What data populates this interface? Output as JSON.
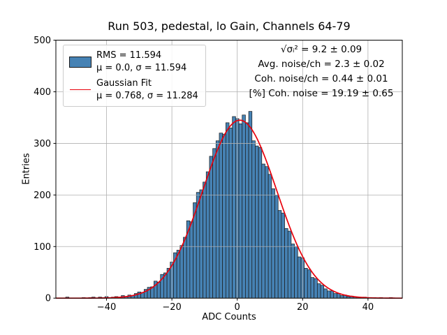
{
  "chart_data": {
    "type": "bar",
    "subtype": "histogram",
    "title": "Run 503, pedestal, lo Gain, Channels 64-79",
    "xlabel": "ADC Counts",
    "ylabel": "Entries",
    "xlim": [
      -55.5,
      50.5
    ],
    "ylim": [
      0,
      500
    ],
    "xticks": [
      -40,
      -20,
      0,
      20,
      40
    ],
    "yticks": [
      0,
      100,
      200,
      300,
      400,
      500
    ],
    "grid": true,
    "bin_start": -52.5,
    "bin_width": 1,
    "counts": [
      2,
      0,
      0,
      0,
      0,
      1,
      0,
      1,
      2,
      0,
      2,
      1,
      3,
      1,
      2,
      3,
      1,
      5,
      3,
      6,
      5,
      9,
      12,
      11,
      17,
      21,
      22,
      33,
      31,
      46,
      49,
      58,
      70,
      88,
      93,
      102,
      118,
      150,
      148,
      185,
      205,
      210,
      225,
      245,
      275,
      290,
      305,
      320,
      318,
      340,
      330,
      352,
      348,
      338,
      355,
      340,
      362,
      305,
      295,
      292,
      260,
      255,
      240,
      212,
      200,
      170,
      165,
      135,
      130,
      105,
      100,
      80,
      78,
      58,
      55,
      40,
      38,
      28,
      25,
      18,
      14,
      14,
      9,
      9,
      5,
      6,
      3,
      4,
      2,
      2,
      1,
      2,
      1,
      0,
      1,
      0,
      1,
      0,
      0,
      1
    ],
    "fit": {
      "label": "Gaussian Fit",
      "mu": 0.768,
      "sigma": 11.284,
      "amplitude": 345
    },
    "legend": {
      "entries": [
        {
          "type": "patch",
          "lines": [
            "RMS = 11.594",
            "μ = 0.0, σ = 11.594"
          ]
        },
        {
          "type": "line",
          "lines": [
            "Gaussian Fit",
            "μ = 0.768, σ = 11.284"
          ]
        }
      ]
    },
    "annotations": [
      "√σᵢ² = 9.2 ± 0.09",
      "Avg. noise/ch = 2.3 ± 0.02",
      "Coh. noise/ch = 0.44 ± 0.01",
      "[%] Coh. noise = 19.19 ± 0.65"
    ],
    "colors": {
      "bar_fill": "#4682b4",
      "bar_edge": "#1a1a1a",
      "fit_line": "#e8000b",
      "grid": "#b0b0b0",
      "spine": "#000000"
    }
  }
}
